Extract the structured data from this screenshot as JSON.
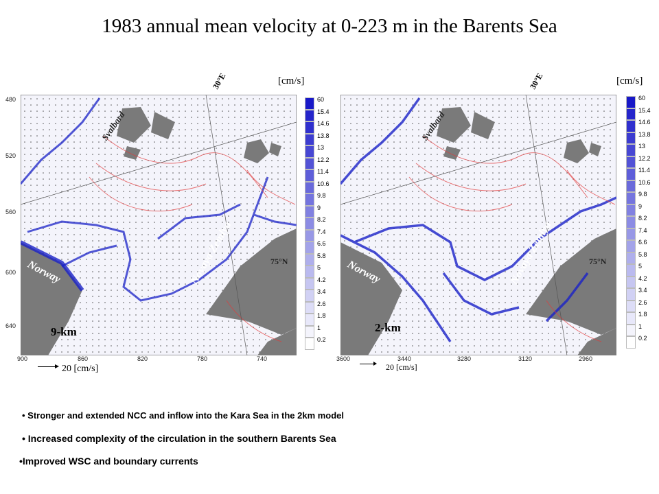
{
  "title": "1983 annual mean velocity at 0-223 m in the Barents Sea",
  "colors": {
    "land": "#7a7a7a",
    "ocean": "#ffffff",
    "current": "#1a22c8",
    "contour": "#e23a3a"
  },
  "panels": [
    {
      "unit": "[cm/s]",
      "lon_label": "30°E",
      "model": "9-km",
      "regions": {
        "svalbard": "Svalbard",
        "norway": "Norway",
        "novaya": "Novaya Zemlya",
        "lat": "75°N"
      },
      "y_ticks": [
        "480",
        "520",
        "560",
        "600",
        "640"
      ],
      "x_ticks": [
        "900",
        "860",
        "820",
        "780",
        "740"
      ],
      "scale": "20 [cm/s]"
    },
    {
      "unit": "[cm/s]",
      "lon_label": "30°E",
      "model": "2-km",
      "regions": {
        "svalbard": "Svalbard",
        "norway": "Norway",
        "novaya": "Novaya Zemlya",
        "lat": "75°N"
      },
      "x_ticks": [
        "3600",
        "3440",
        "3280",
        "3120",
        "2960"
      ],
      "scale": "20 [cm/s]"
    }
  ],
  "colorbar_labels": [
    "60",
    "15.4",
    "14.6",
    "13.8",
    "13",
    "12.2",
    "11.4",
    "10.6",
    "9.8",
    "9",
    "8.2",
    "7.4",
    "6.6",
    "5.8",
    "5",
    "4.2",
    "3.4",
    "2.6",
    "1.8",
    "1",
    "0.2"
  ],
  "bullets": [
    "Stronger and extended NCC and inflow into the Kara Sea in the 2km model",
    "Increased complexity of the circulation in the southern Barents Sea",
    "Improved WSC and boundary currents"
  ]
}
